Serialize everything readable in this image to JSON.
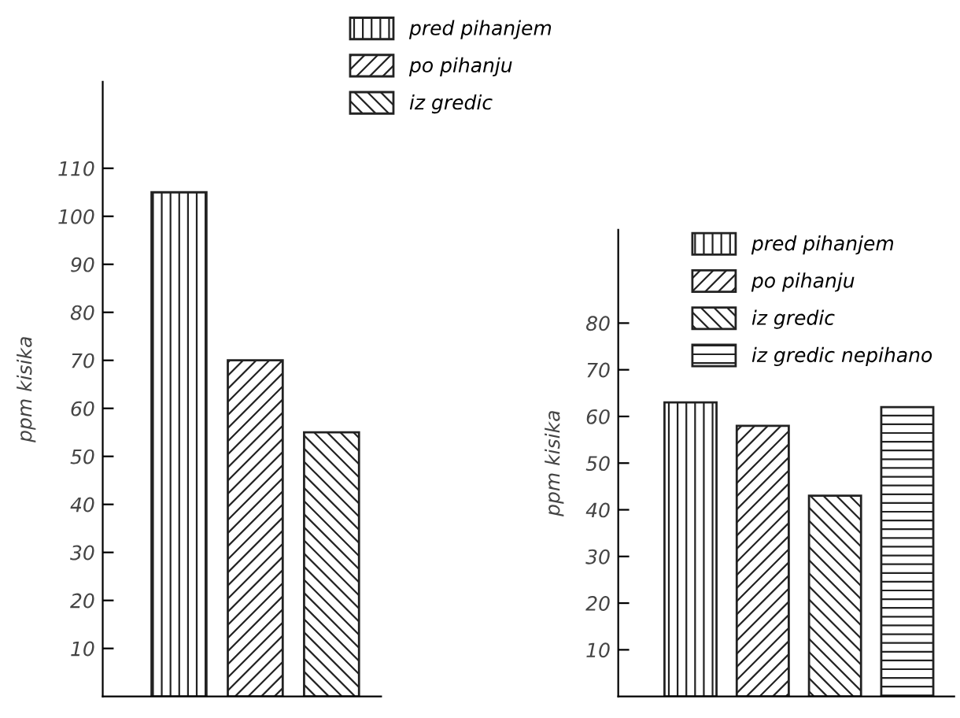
{
  "chart_data": [
    {
      "type": "bar",
      "categories": [
        null
      ],
      "ylabel": "ppm kisika",
      "ylim": [
        0,
        128
      ],
      "yticks": [
        10,
        20,
        30,
        40,
        50,
        60,
        70,
        80,
        90,
        100,
        110
      ],
      "legend": "top",
      "grid": false,
      "series": [
        {
          "name": "pred pihanjem",
          "color": "#222222",
          "values": [
            105
          ]
        },
        {
          "name": "po pihanju",
          "color": "#222222",
          "values": [
            70
          ]
        },
        {
          "name": "iz gredic",
          "color": "#222222",
          "values": [
            55
          ]
        }
      ]
    },
    {
      "type": "bar",
      "categories": [
        null
      ],
      "ylabel": "ppm kisika",
      "ylim": [
        0,
        100
      ],
      "yticks": [
        10,
        20,
        30,
        40,
        50,
        60,
        70,
        80
      ],
      "legend": "top right",
      "grid": false,
      "series": [
        {
          "name": "pred pihanjem",
          "color": "#222222",
          "values": [
            63
          ]
        },
        {
          "name": "po pihanju",
          "color": "#222222",
          "values": [
            58
          ]
        },
        {
          "name": "iz gredic",
          "color": "#222222",
          "values": [
            43
          ]
        },
        {
          "name": "iz gredic nepihano",
          "color": "#222222",
          "values": [
            62
          ]
        }
      ]
    }
  ]
}
